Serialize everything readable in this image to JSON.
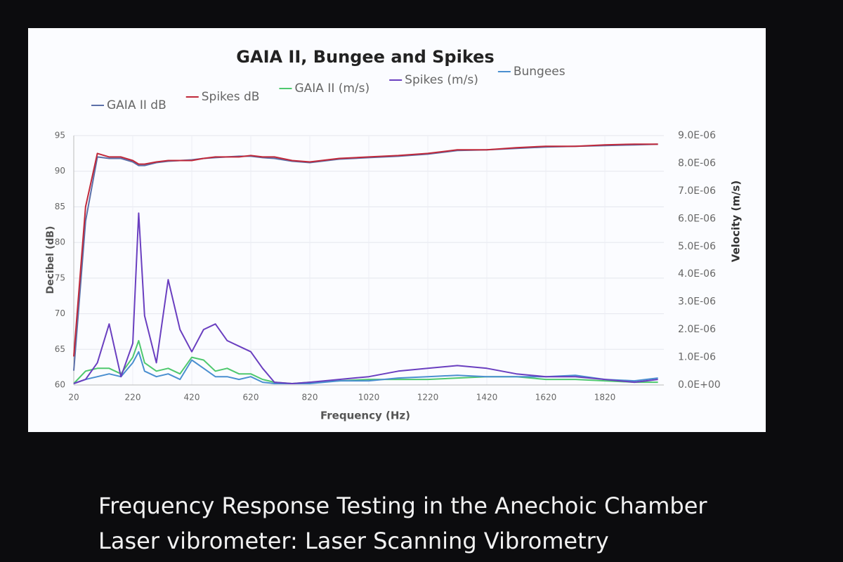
{
  "chart_data": {
    "type": "line",
    "title": "GAIA II, Bungee and Spikes",
    "x_label": "Frequency (Hz)",
    "y_label": "Decibel (dB)",
    "y2_label": "Velocity (m/s)",
    "x": [
      20,
      60,
      100,
      140,
      180,
      220,
      240,
      260,
      300,
      340,
      380,
      420,
      460,
      500,
      540,
      580,
      620,
      660,
      700,
      760,
      820,
      920,
      1020,
      1120,
      1220,
      1320,
      1420,
      1520,
      1620,
      1720,
      1820,
      1920,
      2000
    ],
    "series": [
      {
        "name": "GAIA II dB",
        "color": "#5b6fa8",
        "values": [
          62,
          83,
          92,
          91.8,
          91.8,
          91.3,
          90.8,
          90.8,
          91.2,
          91.4,
          91.5,
          91.6,
          91.8,
          91.9,
          92,
          92.1,
          92.1,
          91.9,
          91.8,
          91.4,
          91.2,
          91.7,
          91.9,
          92.1,
          92.4,
          92.9,
          93,
          93.2,
          93.4,
          93.5,
          93.6,
          93.7,
          93.8
        ]
      },
      {
        "name": "Spikes dB",
        "color": "#c0283a",
        "values": [
          64,
          85,
          92.5,
          92,
          92,
          91.5,
          91,
          91,
          91.3,
          91.5,
          91.5,
          91.5,
          91.8,
          92,
          92,
          92,
          92.2,
          92,
          92,
          91.5,
          91.3,
          91.8,
          92,
          92.2,
          92.5,
          93,
          93,
          93.3,
          93.5,
          93.5,
          93.7,
          93.8,
          93.8
        ]
      },
      {
        "name": "GAIA II (m/s)",
        "color": "#4ec86e",
        "axis": "y2",
        "values": [
          5e-08,
          5e-07,
          6e-07,
          6e-07,
          4e-07,
          1e-06,
          1.6e-06,
          8e-07,
          5e-07,
          6e-07,
          4e-07,
          1e-06,
          9e-07,
          5e-07,
          6e-07,
          4e-07,
          4e-07,
          2e-07,
          1e-07,
          5e-08,
          1e-07,
          1.5e-07,
          2e-07,
          2e-07,
          2e-07,
          2.5e-07,
          3e-07,
          3e-07,
          2e-07,
          2e-07,
          1.5e-07,
          1e-07,
          1e-07
        ]
      },
      {
        "name": "Spikes (m/s)",
        "color": "#6a3fc0",
        "axis": "y2",
        "values": [
          5e-08,
          2e-07,
          8e-07,
          2.2e-06,
          3e-07,
          1.5e-06,
          6.2e-06,
          2.5e-06,
          8e-07,
          3.8e-06,
          2e-06,
          1.2e-06,
          2e-06,
          2.2e-06,
          1.6e-06,
          1.4e-06,
          1.2e-06,
          6e-07,
          1e-07,
          5e-08,
          1e-07,
          2e-07,
          3e-07,
          5e-07,
          6e-07,
          7e-07,
          6e-07,
          4e-07,
          3e-07,
          3e-07,
          2e-07,
          1e-07,
          2e-07
        ]
      },
      {
        "name": "Bungees",
        "color": "#4a8fd0",
        "axis": "y2",
        "values": [
          5e-08,
          2e-07,
          3e-07,
          4e-07,
          3e-07,
          8e-07,
          1.2e-06,
          5e-07,
          3e-07,
          4e-07,
          2e-07,
          9e-07,
          6e-07,
          3e-07,
          3e-07,
          2e-07,
          3e-07,
          1e-07,
          5e-08,
          5e-08,
          5e-08,
          1.5e-07,
          1.5e-07,
          2.5e-07,
          3e-07,
          3.5e-07,
          3e-07,
          3e-07,
          3e-07,
          3.5e-07,
          2e-07,
          1.5e-07,
          2.5e-07
        ]
      }
    ],
    "xlim": [
      20,
      2020
    ],
    "xticks": [
      20,
      220,
      420,
      620,
      820,
      1020,
      1220,
      1420,
      1620,
      1820
    ],
    "ylim": [
      60,
      95
    ],
    "yticks": [
      60,
      65,
      70,
      75,
      80,
      85,
      90,
      95
    ],
    "y2lim": [
      0,
      9e-06
    ],
    "y2ticks": [
      {
        "value": 0,
        "label": "0.0E+00"
      },
      {
        "value": 1e-06,
        "label": "1.0E-06"
      },
      {
        "value": 2e-06,
        "label": "2.0E-06"
      },
      {
        "value": 3e-06,
        "label": "3.0E-06"
      },
      {
        "value": 4e-06,
        "label": "4.0E-06"
      },
      {
        "value": 5e-06,
        "label": "5.0E-06"
      },
      {
        "value": 6e-06,
        "label": "6.0E-06"
      },
      {
        "value": 7e-06,
        "label": "7.0E-06"
      },
      {
        "value": 8e-06,
        "label": "8.0E-06"
      },
      {
        "value": 9e-06,
        "label": "9.0E-06"
      }
    ],
    "grid": true,
    "legend": "top"
  },
  "slide": {
    "caption_lines": [
      "Frequency Response Testing in the Anechoic Chamber",
      "Laser vibrometer: Laser Scanning Vibrometry"
    ]
  }
}
